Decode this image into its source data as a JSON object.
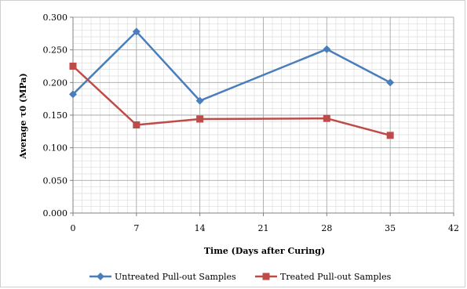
{
  "chart_data": {
    "type": "line",
    "title": "",
    "xlabel": "Time (Days after Curing)",
    "ylabel": "Average τ0 (MPa)",
    "xlim": [
      0,
      42
    ],
    "ylim": [
      0,
      0.3
    ],
    "x_ticks": [
      "0",
      "7",
      "14",
      "21",
      "28",
      "35",
      "42"
    ],
    "y_ticks": [
      "0.000",
      "0.050",
      "0.100",
      "0.150",
      "0.200",
      "0.250",
      "0.300"
    ],
    "grid": true,
    "legend_position": "bottom",
    "series": [
      {
        "name": "Untreated Pull-out Samples",
        "color": "#4a7ebb",
        "marker": "diamond",
        "x": [
          0,
          7,
          14,
          28,
          35
        ],
        "y": [
          0.182,
          0.278,
          0.172,
          0.251,
          0.2
        ]
      },
      {
        "name": "Treated Pull-out Samples",
        "color": "#be4b48",
        "marker": "square",
        "x": [
          0,
          7,
          14,
          28,
          35
        ],
        "y": [
          0.225,
          0.135,
          0.144,
          0.145,
          0.119
        ]
      }
    ]
  }
}
